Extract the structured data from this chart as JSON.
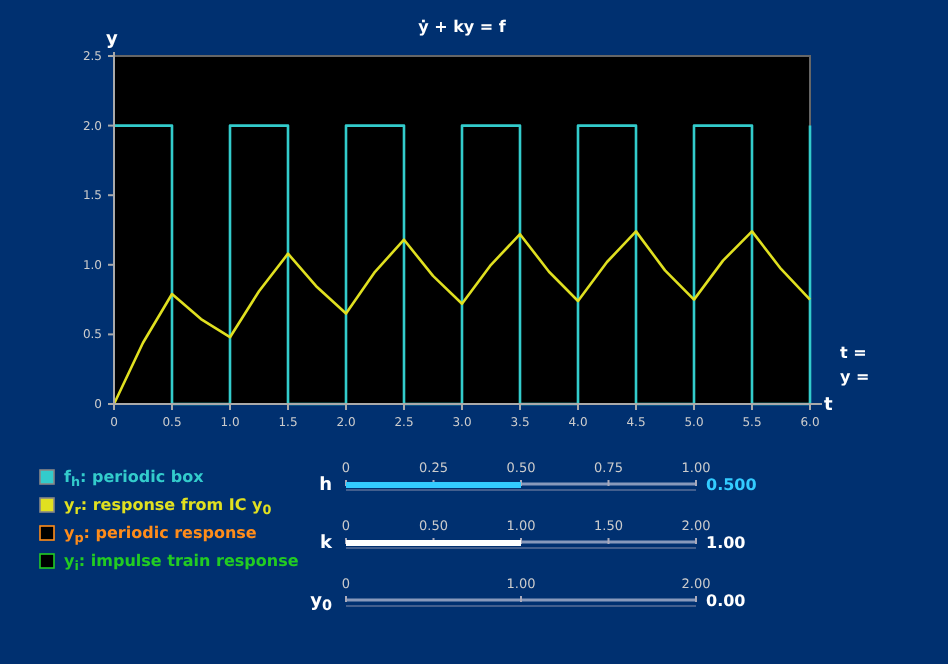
{
  "chart_data": [
    {
      "type": "line",
      "title": "ẏ + ky = f",
      "xlabel": "t",
      "ylabel": "y",
      "xlim": [
        0,
        6
      ],
      "ylim": [
        0,
        2.5
      ],
      "xticks": [
        0,
        0.5,
        {
          "value": 1,
          "label": "1.0"
        },
        1.5,
        {
          "value": 2,
          "label": "2.0"
        },
        2.5,
        {
          "value": 3,
          "label": "3.0"
        },
        3.5,
        {
          "value": 4,
          "label": "4.0"
        },
        4.5,
        {
          "value": 5,
          "label": "5.0"
        },
        5.5,
        {
          "value": 6,
          "label": "6.0"
        }
      ],
      "yticks": [
        0,
        0.5,
        {
          "value": 1,
          "label": "1.0"
        },
        1.5,
        {
          "value": 2,
          "label": "2.0"
        },
        2.5
      ],
      "legend": "bottom left",
      "annotations": [
        "t =",
        "y ="
      ],
      "series": [
        {
          "name": "f$_{h}$: periodic box",
          "type": "step",
          "color": "#33cccc",
          "x": [
            0,
            0.5,
            1,
            1.5,
            2,
            2.5,
            3,
            3.5,
            4,
            4.5,
            5,
            5.5,
            6
          ],
          "values": [
            2,
            0,
            2,
            0,
            2,
            0,
            2,
            0,
            2,
            0,
            2,
            0,
            2
          ]
        },
        {
          "name": "y$_{r}$: response from IC y$_{0}$",
          "color": "#e0e020",
          "x": [
            0,
            0.25,
            0.5,
            0.75,
            1,
            1.25,
            1.5,
            1.75,
            2,
            2.25,
            2.5,
            2.75,
            3,
            3.25,
            3.5,
            3.75,
            4,
            4.25,
            4.5,
            4.75,
            5,
            5.25,
            5.5,
            5.75,
            6
          ],
          "values": [
            0,
            0.44,
            0.79,
            0.61,
            0.48,
            0.81,
            1.08,
            0.84,
            0.65,
            0.95,
            1.18,
            0.92,
            0.72,
            1.0,
            1.22,
            0.95,
            0.74,
            1.02,
            1.24,
            0.96,
            0.75,
            1.03,
            1.24,
            0.97,
            0.75
          ]
        },
        {
          "name": "y$_{p}$: periodic response",
          "color": "#ff8c1a"
        },
        {
          "name": "y$_{i}$: impulse train response",
          "color": "#22cc22"
        }
      ]
    },
    {
      "type": "bar",
      "orientation": "horizontal",
      "categories": [
        "h"
      ],
      "values": [
        0.5
      ],
      "value_labels": [
        "0.500"
      ],
      "color": "#33ccff",
      "xlim": [
        0,
        1
      ],
      "xticks": [
        0,
        0.25,
        {
          "value": 0.5,
          "label": "0.50"
        },
        0.75,
        {
          "value": 1,
          "label": "1.00"
        }
      ]
    },
    {
      "type": "bar",
      "orientation": "horizontal",
      "categories": [
        "k"
      ],
      "values": [
        1
      ],
      "value_labels": [
        "1.00"
      ],
      "color": "#ffffff",
      "xlim": [
        0,
        2
      ],
      "xticks": [
        0,
        {
          "value": 0.5,
          "label": "0.50"
        },
        {
          "value": 1,
          "label": "1.00"
        },
        {
          "value": 1.5,
          "label": "1.50"
        },
        {
          "value": 2,
          "label": "2.00"
        }
      ]
    },
    {
      "type": "bar",
      "orientation": "horizontal",
      "categories": [
        "y$_{0}$"
      ],
      "values": [
        0
      ],
      "value_labels": [
        "0.00"
      ],
      "color": "#ffffff",
      "xlim": [
        0,
        2
      ],
      "xticks": [
        0,
        {
          "value": 1,
          "label": "1.00"
        },
        {
          "value": 2,
          "label": "2.00"
        }
      ]
    }
  ]
}
